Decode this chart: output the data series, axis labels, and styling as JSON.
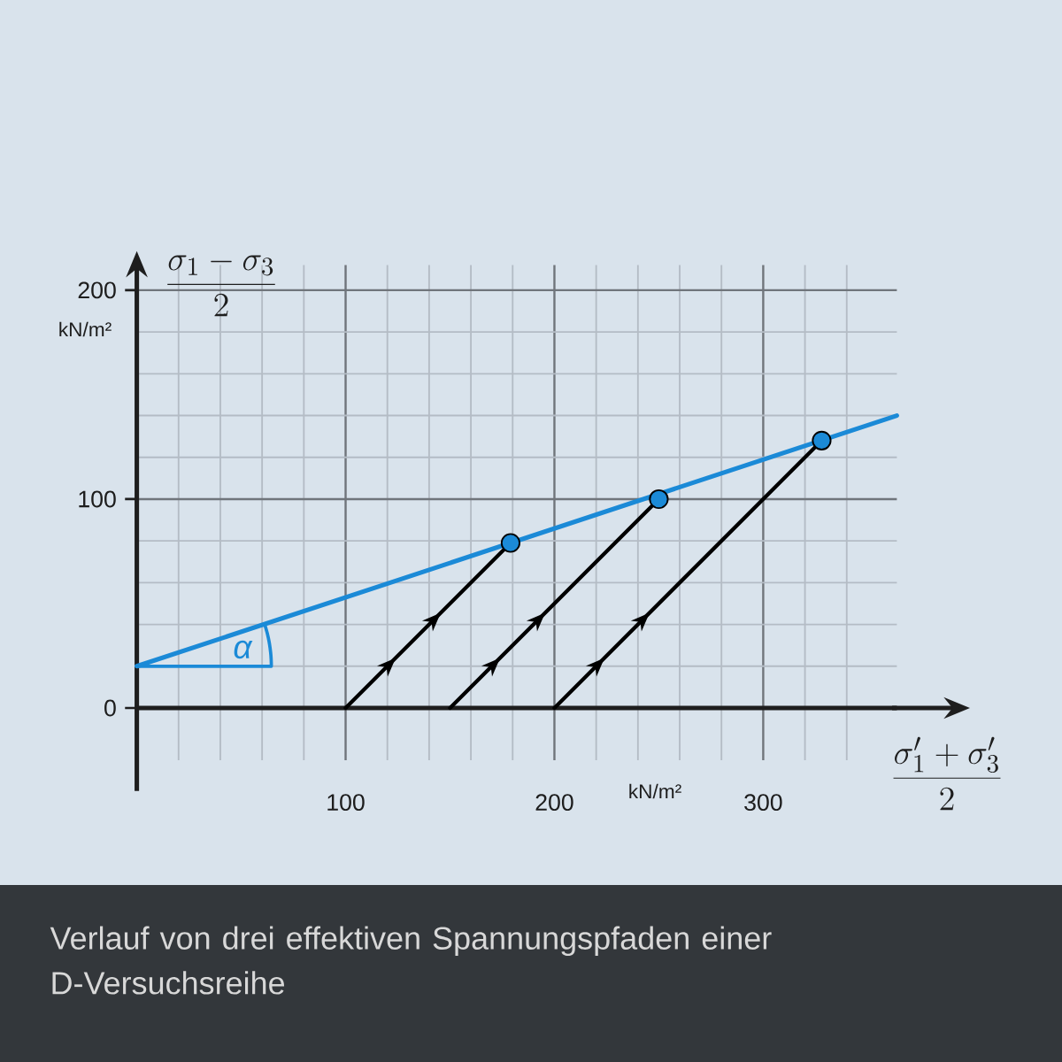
{
  "chart_data": {
    "type": "line",
    "xlabel": "\\frac{\\sigma'_{1}+\\sigma'_{3}}{2}",
    "ylabel": "\\frac{\\sigma_{1}-\\sigma_{3}}{2}",
    "xlim": [
      0,
      364
    ],
    "ylim": [
      -25,
      212
    ],
    "xticks": [
      {
        "value": 20,
        "label": null
      },
      {
        "value": 40,
        "label": null
      },
      {
        "value": 60,
        "label": null
      },
      {
        "value": 80,
        "label": null
      },
      100,
      {
        "value": 120,
        "label": null
      },
      {
        "value": 140,
        "label": null
      },
      {
        "value": 160,
        "label": null
      },
      {
        "value": 180,
        "label": null
      },
      200,
      {
        "value": 220,
        "label": null
      },
      {
        "value": 240,
        "label": null
      },
      {
        "value": 260,
        "label": null
      },
      {
        "value": 280,
        "label": null
      },
      300,
      {
        "value": 320,
        "label": null
      },
      {
        "value": 340,
        "label": null
      }
    ],
    "yticks": [
      0,
      {
        "value": 20,
        "label": null
      },
      {
        "value": 40,
        "label": null
      },
      {
        "value": 60,
        "label": null
      },
      {
        "value": 80,
        "label": null
      },
      100,
      {
        "value": 120,
        "label": null
      },
      {
        "value": 140,
        "label": null
      },
      {
        "value": 160,
        "label": null
      },
      {
        "value": 180,
        "label": null
      },
      200
    ],
    "grid": true,
    "series": [
      {
        "color": "#1b8ad7",
        "x": [
          0,
          364
        ],
        "values": [
          20,
          140
        ]
      },
      {
        "color": "#000000",
        "x": [
          100,
          179
        ],
        "values": [
          0,
          79
        ]
      },
      {
        "color": "#000000",
        "x": [
          150,
          250
        ],
        "values": [
          0,
          100
        ]
      },
      {
        "color": "#000000",
        "x": [
          200,
          328
        ],
        "values": [
          0,
          128
        ]
      },
      {
        "type": "scatter",
        "color": "#1b8ad7",
        "marker": "circle",
        "x": [
          179,
          250,
          328
        ],
        "values": [
          79,
          100,
          128
        ]
      }
    ],
    "annotations": [
      "Verlauf von drei effektiven Spannungspfaden einer D-Versuchsreihe",
      "kN/m²",
      "kN/m²",
      "α"
    ]
  }
}
